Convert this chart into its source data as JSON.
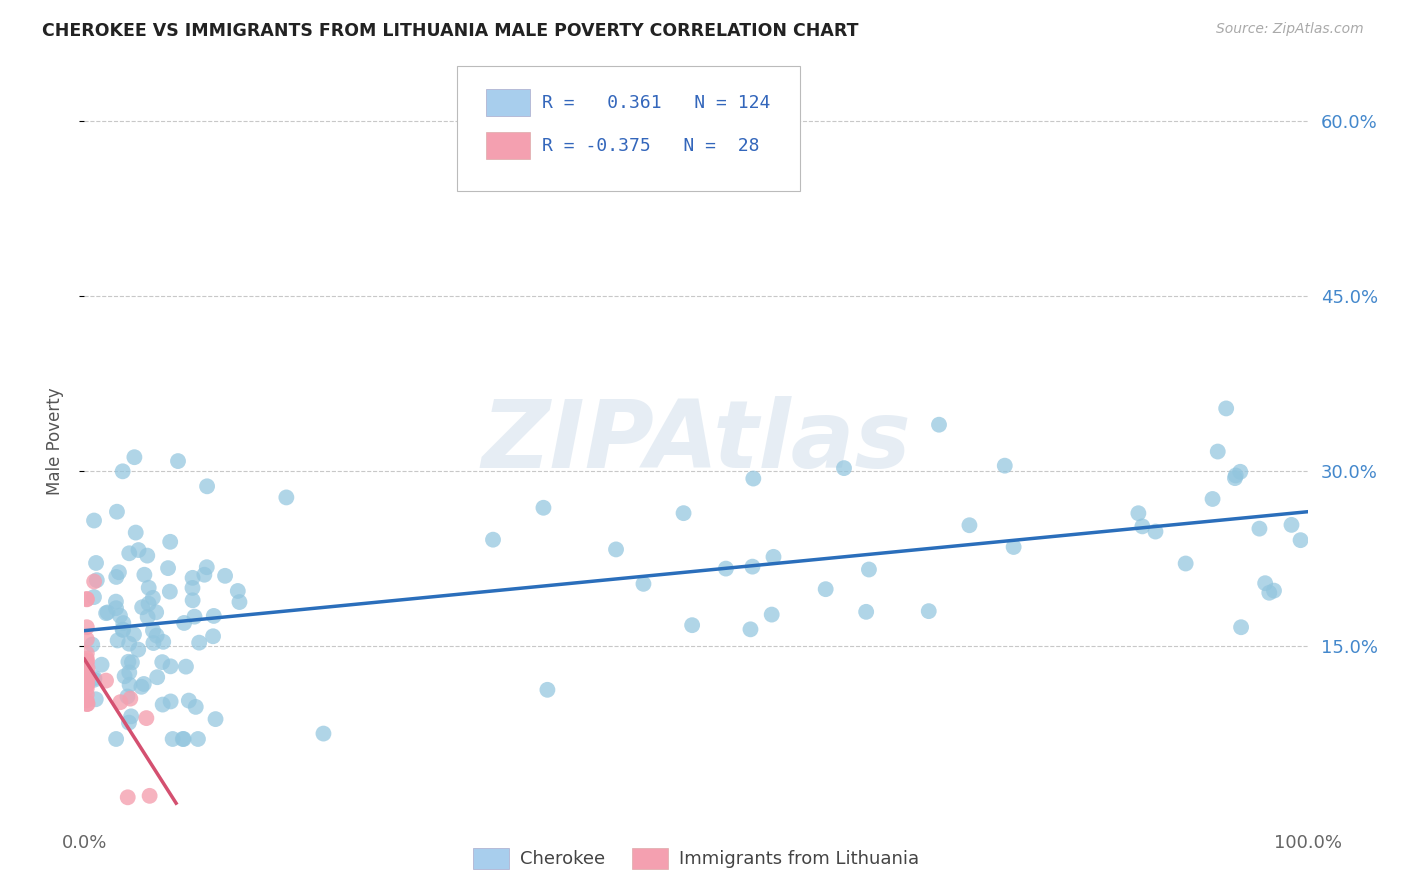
{
  "title": "CHEROKEE VS IMMIGRANTS FROM LITHUANIA MALE POVERTY CORRELATION CHART",
  "source": "Source: ZipAtlas.com",
  "ylabel_label": "Male Poverty",
  "xlim": [
    0,
    1
  ],
  "ylim": [
    0,
    0.65
  ],
  "ytick_vals": [
    0.15,
    0.3,
    0.45,
    0.6
  ],
  "ytick_labels": [
    "15.0%",
    "30.0%",
    "45.0%",
    "60.0%"
  ],
  "xtick_vals": [
    0.0,
    1.0
  ],
  "xtick_labels": [
    "0.0%",
    "100.0%"
  ],
  "cherokee_R": "0.361",
  "cherokee_N": "124",
  "lithuania_R": "-0.375",
  "lithuania_N": "28",
  "cherokee_color": "#92C5DE",
  "cherokee_line_color": "#2A6EBB",
  "lithuania_color": "#F4A0B0",
  "lithuania_line_color": "#D45070",
  "background_color": "#FFFFFF",
  "grid_color": "#C8C8C8",
  "watermark": "ZIPAtlas",
  "legend_cherokee_color": "#A8CEED",
  "legend_lithuania_color": "#F4A0B0"
}
